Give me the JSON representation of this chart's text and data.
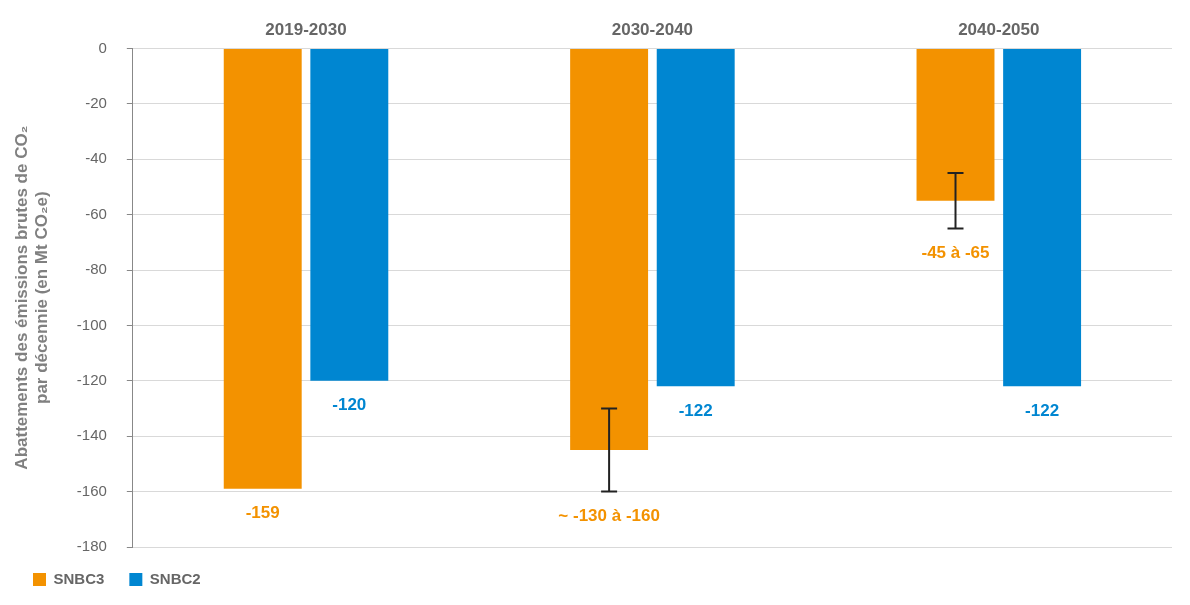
{
  "chart_data": {
    "type": "bar",
    "ylabel": "Abattements des émissions brutes de CO₂ par décennie (en Mt CO₂e)",
    "categories": [
      "2019-2030",
      "2030-2040",
      "2040-2050"
    ],
    "series": [
      {
        "name": "SNBC3",
        "color": "#f39200",
        "values": [
          -159,
          -145,
          -55
        ],
        "errors": [
          null,
          [
            -160,
            -130
          ],
          [
            -65,
            -45
          ]
        ],
        "value_labels": [
          "-159",
          null,
          null
        ]
      },
      {
        "name": "SNBC2",
        "color": "#0086d1",
        "values": [
          -120,
          -122,
          -122
        ],
        "value_labels": [
          "-120",
          "-122",
          "-122"
        ]
      }
    ],
    "ylim": [
      -180,
      0
    ],
    "yticks": [
      0,
      -20,
      -40,
      -60,
      -80,
      -100,
      -120,
      -140,
      -160,
      -180
    ],
    "annotations": [
      "~ -130 à -160",
      "-45 à -65"
    ],
    "grid": "y",
    "legend": "bottom left"
  }
}
